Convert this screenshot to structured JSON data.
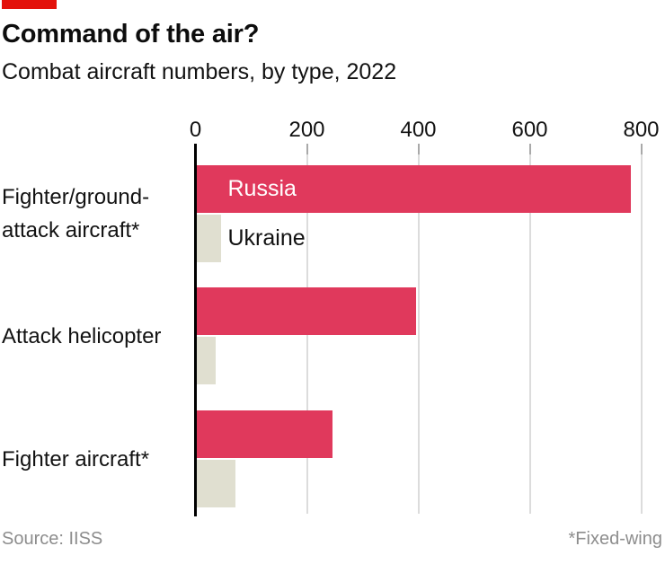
{
  "brand": {
    "tab_color": "#e3120b"
  },
  "chart_data": {
    "type": "bar",
    "orientation": "horizontal",
    "title": "Command of the air?",
    "subtitle": "Combat aircraft numbers, by type, 2022",
    "source": "Source: IISS",
    "footnote": "*Fixed-wing",
    "x_axis": {
      "min": 0,
      "max": 800,
      "ticks": [
        0,
        200,
        400,
        600,
        800
      ],
      "gridlines": true,
      "position": "top"
    },
    "categories": [
      {
        "label": "Fighter/ground-attack aircraft*",
        "lines": [
          "Fighter/ground-",
          "attack aircraft*"
        ]
      },
      {
        "label": "Attack helicopter",
        "lines": [
          "Attack helicopter"
        ]
      },
      {
        "label": "Fighter aircraft*",
        "lines": [
          "Fighter aircraft*"
        ]
      }
    ],
    "series": [
      {
        "name": "Russia",
        "color": "#e0395c",
        "text_color": "#ffffff",
        "values": [
          780,
          395,
          245
        ]
      },
      {
        "name": "Ukraine",
        "color": "#e0dfd0",
        "text_color": "#121212",
        "values": [
          45,
          35,
          70
        ]
      }
    ],
    "legend_position": "labels-beside-first-bars"
  }
}
